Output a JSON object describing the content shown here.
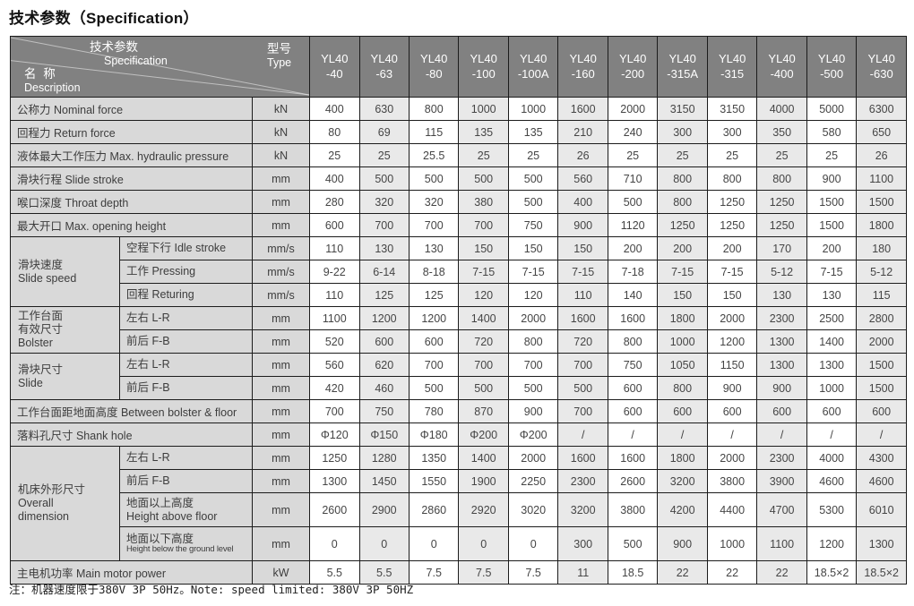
{
  "page": {
    "title": "技术参数（Specification）",
    "footnote": "注：机器速度限于380V 3P 50Hz。Note: speed limited: 380V 3P 50HZ"
  },
  "table": {
    "header": {
      "corner_spec_zh": "技术参数",
      "corner_spec_en": "Specification",
      "corner_name_zh": "名 称",
      "corner_name_en": "Description",
      "type_zh": "型号",
      "type_en": "Type",
      "columns": [
        {
          "l1": "YL40",
          "l2": "-40"
        },
        {
          "l1": "YL40",
          "l2": "-63"
        },
        {
          "l1": "YL40",
          "l2": "-80"
        },
        {
          "l1": "YL40",
          "l2": "-100"
        },
        {
          "l1": "YL40",
          "l2": "-100A"
        },
        {
          "l1": "YL40",
          "l2": "-160"
        },
        {
          "l1": "YL40",
          "l2": "-200"
        },
        {
          "l1": "YL40",
          "l2": "-315A"
        },
        {
          "l1": "YL40",
          "l2": "-315"
        },
        {
          "l1": "YL40",
          "l2": "-400"
        },
        {
          "l1": "YL40",
          "l2": "-500"
        },
        {
          "l1": "YL40",
          "l2": "-630"
        }
      ]
    },
    "rows": [
      {
        "kind": "simple",
        "label": "公称力  Nominal force",
        "unit": "kN",
        "values": [
          "400",
          "630",
          "800",
          "1000",
          "1000",
          "1600",
          "2000",
          "3150",
          "3150",
          "4000",
          "5000",
          "6300"
        ]
      },
      {
        "kind": "simple",
        "label": "回程力  Return force",
        "unit": "kN",
        "values": [
          "80",
          "69",
          "115",
          "135",
          "135",
          "210",
          "240",
          "300",
          "300",
          "350",
          "580",
          "650"
        ]
      },
      {
        "kind": "simple",
        "label": "液体最大工作压力 Max. hydraulic pressure",
        "unit": "kN",
        "values": [
          "25",
          "25",
          "25.5",
          "25",
          "25",
          "26",
          "25",
          "25",
          "25",
          "25",
          "25",
          "26"
        ]
      },
      {
        "kind": "simple",
        "label": "滑块行程  Slide stroke",
        "unit": "mm",
        "values": [
          "400",
          "500",
          "500",
          "500",
          "500",
          "560",
          "710",
          "800",
          "800",
          "800",
          "900",
          "1100"
        ]
      },
      {
        "kind": "simple",
        "label": "喉口深度 Throat depth",
        "unit": "mm",
        "values": [
          "280",
          "320",
          "320",
          "380",
          "500",
          "400",
          "500",
          "800",
          "1250",
          "1250",
          "1500",
          "1500"
        ]
      },
      {
        "kind": "simple",
        "label": "最大开口  Max. opening height",
        "unit": "mm",
        "values": [
          "600",
          "700",
          "700",
          "700",
          "750",
          "900",
          "1120",
          "1250",
          "1250",
          "1250",
          "1500",
          "1800"
        ]
      },
      {
        "kind": "group",
        "group_lines": [
          "滑块速度",
          "Slide speed"
        ],
        "group_span": 3,
        "sublabel_lines": [
          "空程下行 Idle stroke"
        ],
        "unit": "mm/s",
        "values": [
          "110",
          "130",
          "130",
          "150",
          "150",
          "150",
          "200",
          "200",
          "200",
          "170",
          "200",
          "180"
        ]
      },
      {
        "kind": "sub",
        "sublabel_lines": [
          "工作 Pressing"
        ],
        "unit": "mm/s",
        "values": [
          "9-22",
          "6-14",
          "8-18",
          "7-15",
          "7-15",
          "7-15",
          "7-18",
          "7-15",
          "7-15",
          "5-12",
          "7-15",
          "5-12"
        ]
      },
      {
        "kind": "sub",
        "sublabel_lines": [
          "回程 Returing"
        ],
        "unit": "mm/s",
        "values": [
          "110",
          "125",
          "125",
          "120",
          "120",
          "110",
          "140",
          "150",
          "150",
          "130",
          "130",
          "115"
        ]
      },
      {
        "kind": "group",
        "group_lines": [
          "工作台面",
          "有效尺寸",
          "Bolster"
        ],
        "group_span": 2,
        "sublabel_lines": [
          "左右 L-R"
        ],
        "unit": "mm",
        "values": [
          "1100",
          "1200",
          "1200",
          "1400",
          "2000",
          "1600",
          "1600",
          "1800",
          "2000",
          "2300",
          "2500",
          "2800"
        ]
      },
      {
        "kind": "sub",
        "sublabel_lines": [
          "前后 F-B"
        ],
        "unit": "mm",
        "values": [
          "520",
          "600",
          "600",
          "720",
          "800",
          "720",
          "800",
          "1000",
          "1200",
          "1300",
          "1400",
          "2000"
        ]
      },
      {
        "kind": "group",
        "group_lines": [
          "滑块尺寸",
          "Slide"
        ],
        "group_span": 2,
        "sublabel_lines": [
          "左右 L-R"
        ],
        "unit": "mm",
        "values": [
          "560",
          "620",
          "700",
          "700",
          "700",
          "700",
          "750",
          "1050",
          "1150",
          "1300",
          "1300",
          "1500"
        ]
      },
      {
        "kind": "sub",
        "sublabel_lines": [
          "前后 F-B"
        ],
        "unit": "mm",
        "values": [
          "420",
          "460",
          "500",
          "500",
          "500",
          "500",
          "600",
          "800",
          "900",
          "900",
          "1000",
          "1500"
        ]
      },
      {
        "kind": "simple",
        "label": "工作台面距地面高度 Between bolster & floor",
        "unit": "mm",
        "values": [
          "700",
          "750",
          "780",
          "870",
          "900",
          "700",
          "600",
          "600",
          "600",
          "600",
          "600",
          "600"
        ]
      },
      {
        "kind": "simple",
        "label": "落料孔尺寸 Shank hole",
        "unit": "mm",
        "values": [
          "Φ120",
          "Φ150",
          "Φ180",
          "Φ200",
          "Φ200",
          "/",
          "/",
          "/",
          "/",
          "/",
          "/",
          "/"
        ]
      },
      {
        "kind": "group",
        "group_lines": [
          "机床外形尺寸",
          "Overall",
          "dimension"
        ],
        "group_span": 4,
        "sublabel_lines": [
          "左右 L-R"
        ],
        "unit": "mm",
        "values": [
          "1250",
          "1280",
          "1350",
          "1400",
          "2000",
          "1600",
          "1600",
          "1800",
          "2000",
          "2300",
          "4000",
          "4300"
        ]
      },
      {
        "kind": "sub",
        "sublabel_lines": [
          "前后 F-B"
        ],
        "unit": "mm",
        "values": [
          "1300",
          "1450",
          "1550",
          "1900",
          "2250",
          "2300",
          "2600",
          "3200",
          "3800",
          "3900",
          "4600",
          "4600"
        ]
      },
      {
        "kind": "sub",
        "tall": true,
        "sublabel_lines": [
          "地面以上高度",
          "Height above floor"
        ],
        "unit": "mm",
        "values": [
          "2600",
          "2900",
          "2860",
          "2920",
          "3020",
          "3200",
          "3800",
          "4200",
          "4400",
          "4700",
          "5300",
          "6010"
        ]
      },
      {
        "kind": "sub",
        "tall": true,
        "sublabel_small_en": true,
        "sublabel_lines": [
          "地面以下高度",
          "Height below the ground level"
        ],
        "unit": "mm",
        "values": [
          "0",
          "0",
          "0",
          "0",
          "0",
          "300",
          "500",
          "900",
          "1000",
          "1100",
          "1200",
          "1300"
        ]
      },
      {
        "kind": "simple",
        "label": "主电机功率 Main motor power",
        "unit": "kW",
        "values": [
          "5.5",
          "5.5",
          "7.5",
          "7.5",
          "7.5",
          "11",
          "18.5",
          "22",
          "22",
          "22",
          "18.5×2",
          "18.5×2"
        ]
      }
    ]
  }
}
